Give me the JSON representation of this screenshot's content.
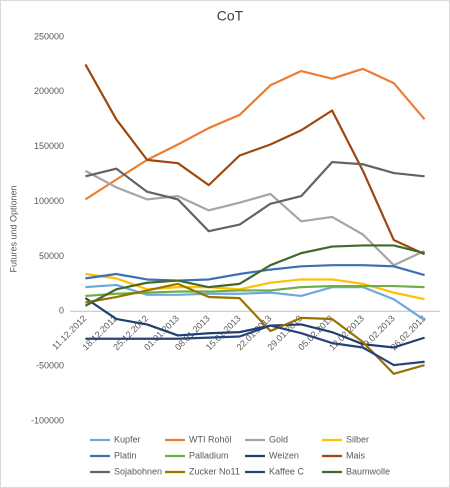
{
  "chart_data": {
    "type": "line",
    "title": "CoT",
    "y_label": "Futures und Optionen",
    "categories": [
      "11.12.2012",
      "18.12.2012",
      "25.12.2012",
      "01.01.2013",
      "08.01.2013",
      "15.01.2013",
      "22.01.2013",
      "29.01.2013",
      "05.02.2013",
      "12.02.2013",
      "19.02.2013",
      "26.02.2013"
    ],
    "ylim": [
      -100000,
      250000
    ],
    "yticks": [
      -100000,
      -50000,
      0,
      50000,
      100000,
      150000,
      200000,
      250000
    ],
    "grid": false,
    "series": [
      {
        "name": "Kupfer",
        "color": "#6fa8dc",
        "values": [
          22000,
          24000,
          15000,
          15000,
          16000,
          16000,
          17000,
          14000,
          22000,
          22000,
          11000,
          -8000
        ]
      },
      {
        "name": "WTI Rohöl",
        "color": "#ed7d31",
        "values": [
          102000,
          120000,
          138000,
          152000,
          167000,
          179000,
          206000,
          219000,
          212000,
          221000,
          208000,
          175000
        ]
      },
      {
        "name": "Gold",
        "color": "#a5a5a5",
        "values": [
          128000,
          113000,
          102000,
          105000,
          92000,
          99000,
          107000,
          82000,
          86000,
          70000,
          42000,
          55000
        ]
      },
      {
        "name": "Silber",
        "color": "#ffc000",
        "values": [
          34000,
          30000,
          20000,
          22000,
          22000,
          20000,
          26000,
          29000,
          29000,
          25000,
          17000,
          11000
        ]
      },
      {
        "name": "Platin",
        "color": "#3e6fb3",
        "values": [
          30000,
          34000,
          29000,
          28000,
          29000,
          34000,
          38000,
          41000,
          42000,
          42000,
          41000,
          33000
        ]
      },
      {
        "name": "Palladium",
        "color": "#70ad47",
        "values": [
          14000,
          16000,
          17000,
          18000,
          18000,
          19000,
          19000,
          22000,
          23000,
          23000,
          23000,
          22000
        ]
      },
      {
        "name": "Weizen",
        "color": "#1f3f6e",
        "values": [
          12000,
          -7000,
          -12000,
          -22000,
          -20000,
          -19000,
          -13000,
          -12000,
          -19000,
          -30000,
          -33000,
          -24000
        ]
      },
      {
        "name": "Mais",
        "color": "#9e480e",
        "values": [
          225000,
          175000,
          138000,
          135000,
          115000,
          142000,
          152000,
          165000,
          183000,
          128000,
          65000,
          52000
        ]
      },
      {
        "name": "Sojabohnen",
        "color": "#636363",
        "values": [
          123000,
          130000,
          109000,
          102000,
          73000,
          79000,
          98000,
          105000,
          136000,
          134000,
          126000,
          123000
        ]
      },
      {
        "name": "Zucker No11",
        "color": "#997300",
        "values": [
          8000,
          13000,
          19000,
          25000,
          13000,
          12000,
          -18000,
          -6000,
          -7000,
          -28000,
          -57000,
          -49000
        ]
      },
      {
        "name": "Kaffee C",
        "color": "#264478",
        "values": [
          -25000,
          -25000,
          -25000,
          -25000,
          -24000,
          -23000,
          -13000,
          -20000,
          -29000,
          -33000,
          -49000,
          -46000
        ]
      },
      {
        "name": "Baumwolle",
        "color": "#43682b",
        "values": [
          5000,
          20000,
          26000,
          28000,
          22000,
          25000,
          42000,
          53000,
          59000,
          60000,
          60000,
          53000
        ]
      }
    ]
  }
}
